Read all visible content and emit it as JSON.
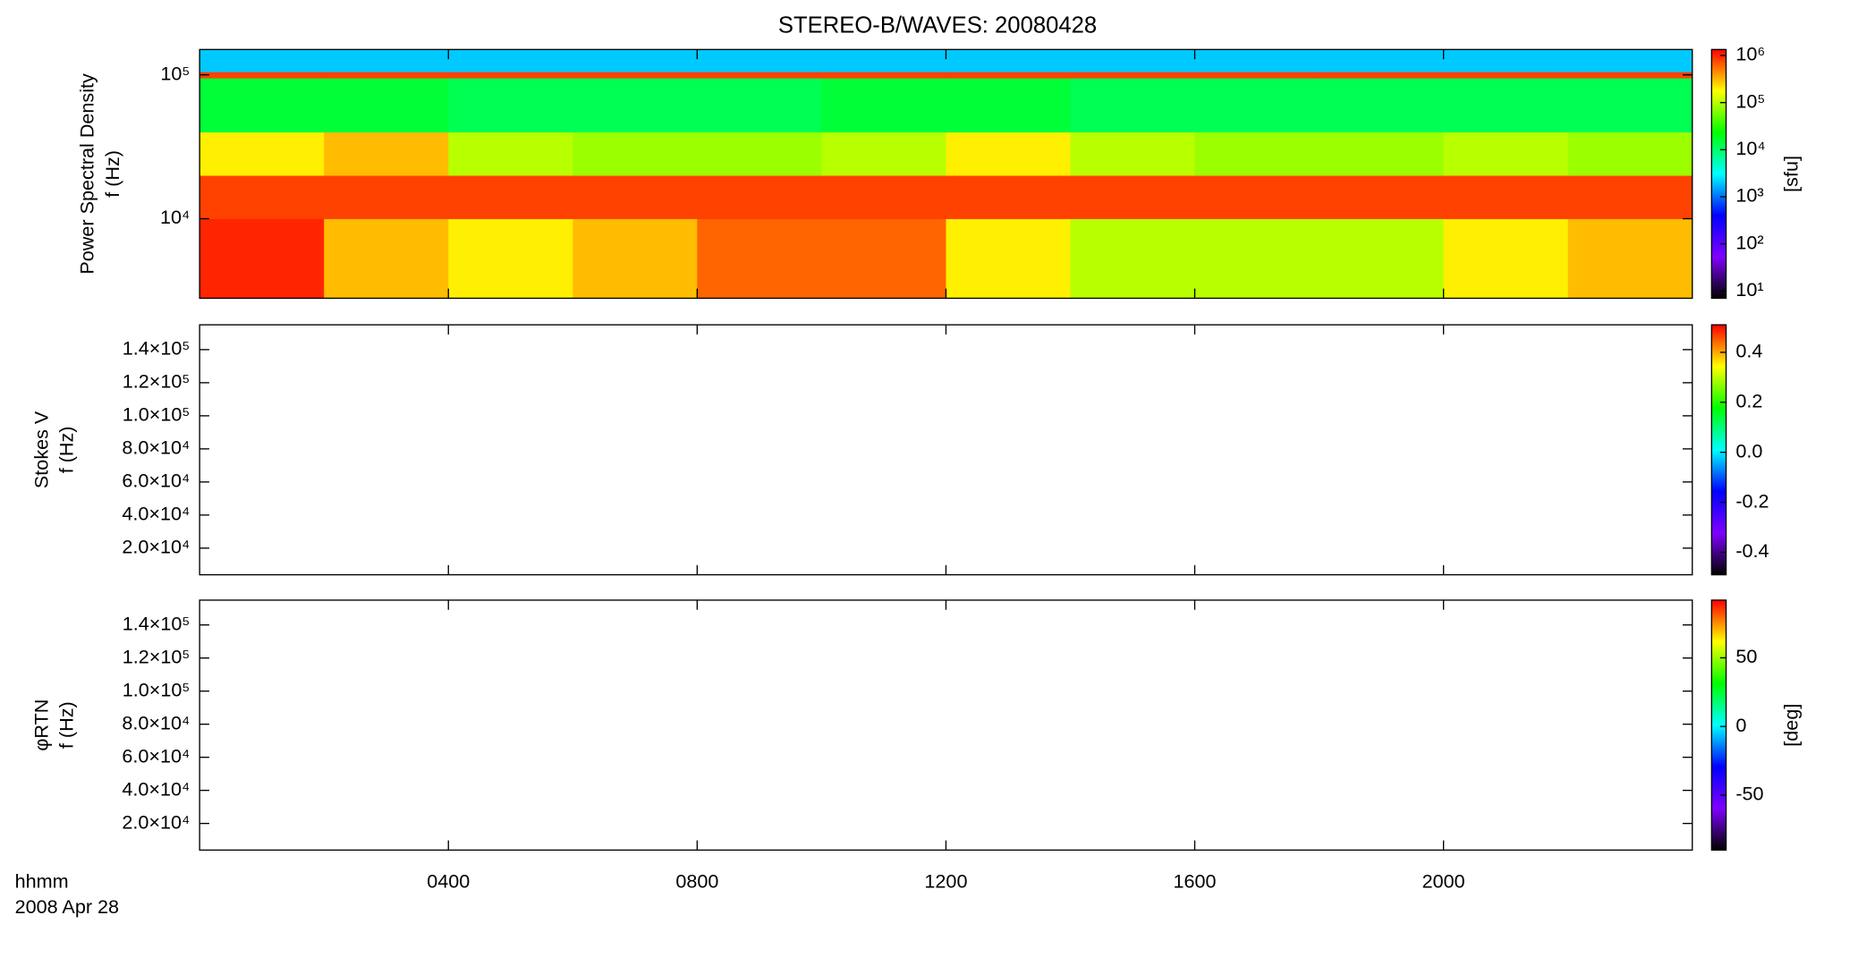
{
  "chart_data": [
    {
      "type": "heatmap",
      "title": "STEREO-B/WAVES: 20080428",
      "ylabel": [
        "Power Spectral Density",
        "f (Hz)"
      ],
      "log_y": true,
      "xlim": [
        0,
        24
      ],
      "xticks": [
        {
          "value": 4,
          "label": "0400"
        },
        {
          "value": 8,
          "label": "0800"
        },
        {
          "value": 12,
          "label": "1200"
        },
        {
          "value": 16,
          "label": "1600"
        },
        {
          "value": 20,
          "label": "2000"
        }
      ],
      "ylim": [
        2800,
        150000
      ],
      "yticks": [
        {
          "value": 10000,
          "label": "10⁴"
        },
        {
          "value": 100000,
          "label": "10⁵"
        }
      ],
      "x": [
        0,
        2,
        4,
        6,
        8,
        10,
        12,
        14,
        16,
        18,
        20,
        22,
        24
      ],
      "y": [
        2800,
        10000,
        20000,
        40000,
        95000,
        105000,
        150000
      ],
      "values": [
        [
          1000000,
          300000,
          200000,
          300000,
          600000,
          600000,
          200000,
          100000,
          100000,
          100000,
          200000,
          300000
        ],
        [
          800000,
          800000,
          800000,
          800000,
          800000,
          800000,
          800000,
          800000,
          800000,
          800000,
          800000,
          800000
        ],
        [
          200000,
          300000,
          100000,
          80000,
          80000,
          100000,
          200000,
          100000,
          80000,
          80000,
          100000,
          80000
        ],
        [
          15000,
          15000,
          12000,
          12000,
          12000,
          15000,
          15000,
          12000,
          12000,
          12000,
          12000,
          12000
        ],
        [
          800000,
          800000,
          800000,
          800000,
          800000,
          800000,
          800000,
          800000,
          800000,
          800000,
          800000,
          800000
        ],
        [
          2000,
          2000,
          2000,
          2000,
          2000,
          2000,
          2000,
          2000,
          2000,
          2000,
          2000,
          2000
        ]
      ],
      "colormap": [
        "#000000",
        "#7f00ff",
        "#0000ff",
        "#00ffff",
        "#00ff00",
        "#ffff00",
        "#ff0000"
      ],
      "colorbar": {
        "log": true,
        "lim": [
          7,
          1340000
        ],
        "label": "[sfu]",
        "ticks": [
          {
            "value": 10,
            "label": "10¹"
          },
          {
            "value": 100,
            "label": "10²"
          },
          {
            "value": 1000,
            "label": "10³"
          },
          {
            "value": 10000,
            "label": "10⁴"
          },
          {
            "value": 100000,
            "label": "10⁵"
          },
          {
            "value": 1000000,
            "label": "10⁶"
          }
        ]
      }
    },
    {
      "type": "heatmap",
      "ylabel": [
        "Stokes V",
        "f (Hz)"
      ],
      "log_y": false,
      "xlim": [
        0,
        24
      ],
      "xticks": [
        {
          "value": 4,
          "label": "0400"
        },
        {
          "value": 8,
          "label": "0800"
        },
        {
          "value": 12,
          "label": "1200"
        },
        {
          "value": 16,
          "label": "1600"
        },
        {
          "value": 20,
          "label": "2000"
        }
      ],
      "ylim": [
        3900,
        155000
      ],
      "yticks": [
        {
          "value": 20000,
          "label": "2.0×10⁴"
        },
        {
          "value": 40000,
          "label": "4.0×10⁴"
        },
        {
          "value": 60000,
          "label": "6.0×10⁴"
        },
        {
          "value": 80000,
          "label": "8.0×10⁴"
        },
        {
          "value": 100000,
          "label": "1.0×10⁵"
        },
        {
          "value": 120000,
          "label": "1.2×10⁵"
        },
        {
          "value": 140000,
          "label": "1.4×10⁵"
        }
      ],
      "colormap": [
        "#000000",
        "#7f00ff",
        "#0000ff",
        "#00ffff",
        "#00ff00",
        "#ffff00",
        "#ff0000"
      ],
      "colorbar": {
        "log": false,
        "lim": [
          -0.49,
          0.51
        ],
        "ticks": [
          {
            "value": -0.4,
            "label": "-0.4"
          },
          {
            "value": -0.2,
            "label": "-0.2"
          },
          {
            "value": 0,
            "label": "0.0"
          },
          {
            "value": 0.2,
            "label": "0.2"
          },
          {
            "value": 0.4,
            "label": "0.4"
          }
        ]
      }
    },
    {
      "type": "heatmap",
      "ylabel": [
        "φRTN",
        "f (Hz)"
      ],
      "log_y": false,
      "xlim": [
        0,
        24
      ],
      "xticks": [
        {
          "value": 4,
          "label": "0400"
        },
        {
          "value": 8,
          "label": "0800"
        },
        {
          "value": 12,
          "label": "1200"
        },
        {
          "value": 16,
          "label": "1600"
        },
        {
          "value": 20,
          "label": "2000"
        }
      ],
      "xlabel": [
        "hhmm",
        "2008 Apr 28"
      ],
      "ylim": [
        3900,
        155000
      ],
      "yticks": [
        {
          "value": 20000,
          "label": "2.0×10⁴"
        },
        {
          "value": 40000,
          "label": "4.0×10⁴"
        },
        {
          "value": 60000,
          "label": "6.0×10⁴"
        },
        {
          "value": 80000,
          "label": "8.0×10⁴"
        },
        {
          "value": 100000,
          "label": "1.0×10⁵"
        },
        {
          "value": 120000,
          "label": "1.2×10⁵"
        },
        {
          "value": 140000,
          "label": "1.4×10⁵"
        }
      ],
      "colormap": [
        "#000000",
        "#7f00ff",
        "#0000ff",
        "#00ffff",
        "#00ff00",
        "#ffff00",
        "#ff0000"
      ],
      "colorbar": {
        "log": false,
        "lim": [
          -90,
          92
        ],
        "label": "[deg]",
        "ticks": [
          {
            "value": -50,
            "label": "-50"
          },
          0,
          50
        ]
      }
    }
  ]
}
